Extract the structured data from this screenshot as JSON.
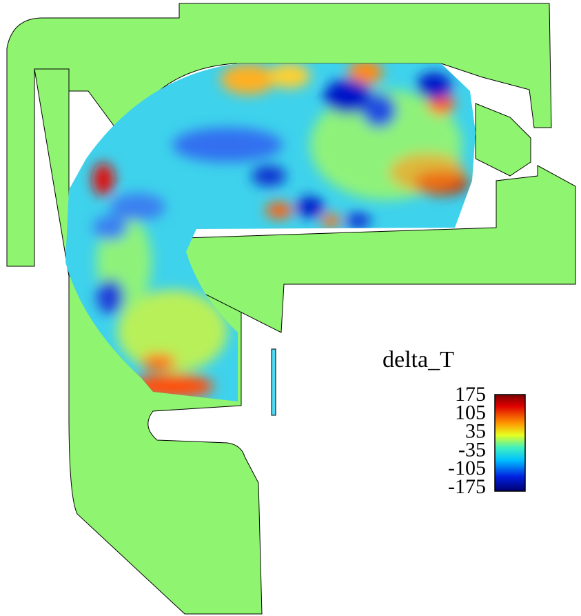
{
  "legend": {
    "title": "delta_T",
    "ticks": [
      175,
      105,
      35,
      -35,
      -105,
      -175
    ]
  }
}
